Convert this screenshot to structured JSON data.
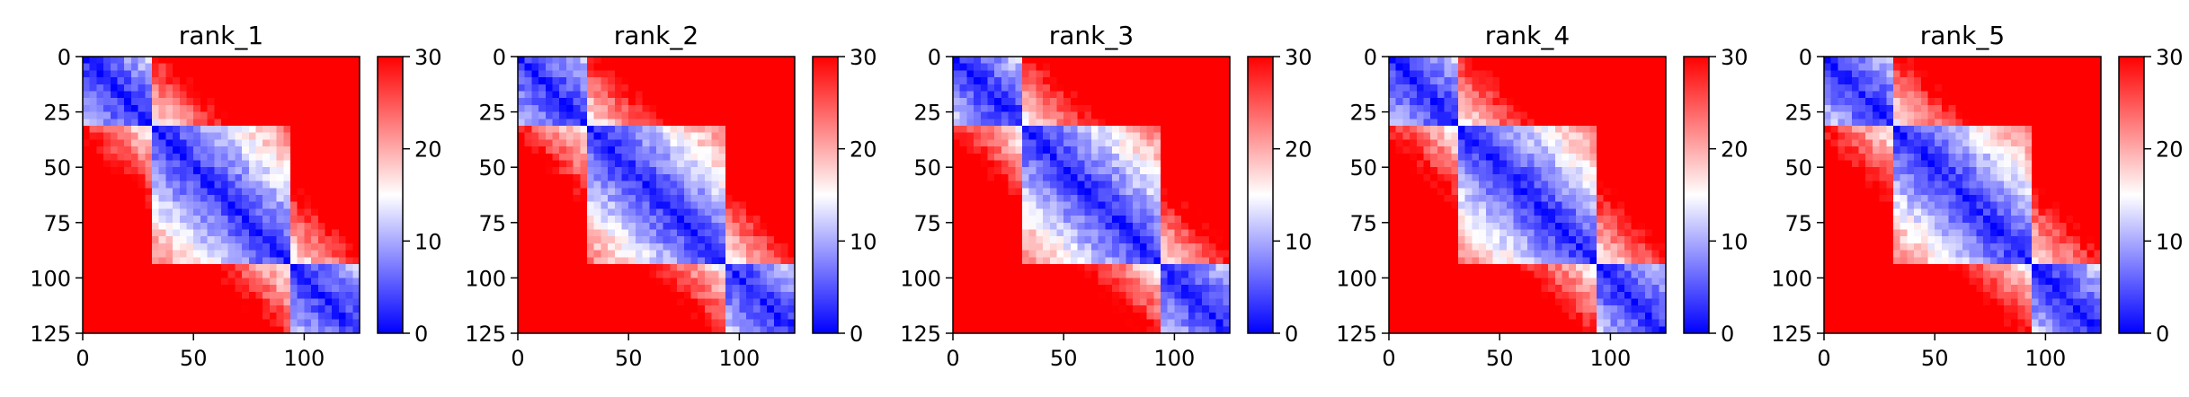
{
  "chart_data": [
    {
      "type": "heatmap",
      "title": "rank_1",
      "xlabel": "",
      "ylabel": "",
      "xlim": [
        0,
        125
      ],
      "ylim": [
        125,
        0
      ],
      "x_ticks": [
        "0",
        "50",
        "100"
      ],
      "y_ticks": [
        "0",
        "25",
        "50",
        "75",
        "100",
        "125"
      ],
      "colorbar": {
        "range": [
          0,
          30
        ],
        "ticks": [
          "0",
          "10",
          "20",
          "30"
        ],
        "colormap": "bwr",
        "low_color": "#0000ff",
        "mid_color": "#ffffff",
        "high_color": "#ff0000"
      },
      "domains": [
        [
          0,
          30
        ],
        [
          30,
          95
        ],
        [
          95,
          125
        ]
      ]
    },
    {
      "type": "heatmap",
      "title": "rank_2",
      "xlabel": "",
      "ylabel": "",
      "xlim": [
        0,
        125
      ],
      "ylim": [
        125,
        0
      ],
      "x_ticks": [
        "0",
        "50",
        "100"
      ],
      "y_ticks": [
        "0",
        "25",
        "50",
        "75",
        "100",
        "125"
      ],
      "colorbar": {
        "range": [
          0,
          30
        ],
        "ticks": [
          "0",
          "10",
          "20",
          "30"
        ],
        "colormap": "bwr",
        "low_color": "#0000ff",
        "mid_color": "#ffffff",
        "high_color": "#ff0000"
      },
      "domains": [
        [
          0,
          30
        ],
        [
          30,
          95
        ],
        [
          95,
          125
        ]
      ]
    },
    {
      "type": "heatmap",
      "title": "rank_3",
      "xlabel": "",
      "ylabel": "",
      "xlim": [
        0,
        125
      ],
      "ylim": [
        125,
        0
      ],
      "x_ticks": [
        "0",
        "50",
        "100"
      ],
      "y_ticks": [
        "0",
        "25",
        "50",
        "75",
        "100",
        "125"
      ],
      "colorbar": {
        "range": [
          0,
          30
        ],
        "ticks": [
          "0",
          "10",
          "20",
          "30"
        ],
        "colormap": "bwr",
        "low_color": "#0000ff",
        "mid_color": "#ffffff",
        "high_color": "#ff0000"
      },
      "domains": [
        [
          0,
          30
        ],
        [
          30,
          95
        ],
        [
          95,
          125
        ]
      ]
    },
    {
      "type": "heatmap",
      "title": "rank_4",
      "xlabel": "",
      "ylabel": "",
      "xlim": [
        0,
        125
      ],
      "ylim": [
        125,
        0
      ],
      "x_ticks": [
        "0",
        "50",
        "100"
      ],
      "y_ticks": [
        "0",
        "25",
        "50",
        "75",
        "100",
        "125"
      ],
      "colorbar": {
        "range": [
          0,
          30
        ],
        "ticks": [
          "0",
          "10",
          "20",
          "30"
        ],
        "colormap": "bwr",
        "low_color": "#0000ff",
        "mid_color": "#ffffff",
        "high_color": "#ff0000"
      },
      "domains": [
        [
          0,
          30
        ],
        [
          30,
          95
        ],
        [
          95,
          125
        ]
      ]
    },
    {
      "type": "heatmap",
      "title": "rank_5",
      "xlabel": "",
      "ylabel": "",
      "xlim": [
        0,
        125
      ],
      "ylim": [
        125,
        0
      ],
      "x_ticks": [
        "0",
        "50",
        "100"
      ],
      "y_ticks": [
        "0",
        "25",
        "50",
        "75",
        "100",
        "125"
      ],
      "colorbar": {
        "range": [
          0,
          30
        ],
        "ticks": [
          "0",
          "10",
          "20",
          "30"
        ],
        "colormap": "bwr",
        "low_color": "#0000ff",
        "mid_color": "#ffffff",
        "high_color": "#ff0000"
      },
      "domains": [
        [
          0,
          30
        ],
        [
          30,
          95
        ],
        [
          95,
          125
        ]
      ]
    }
  ]
}
